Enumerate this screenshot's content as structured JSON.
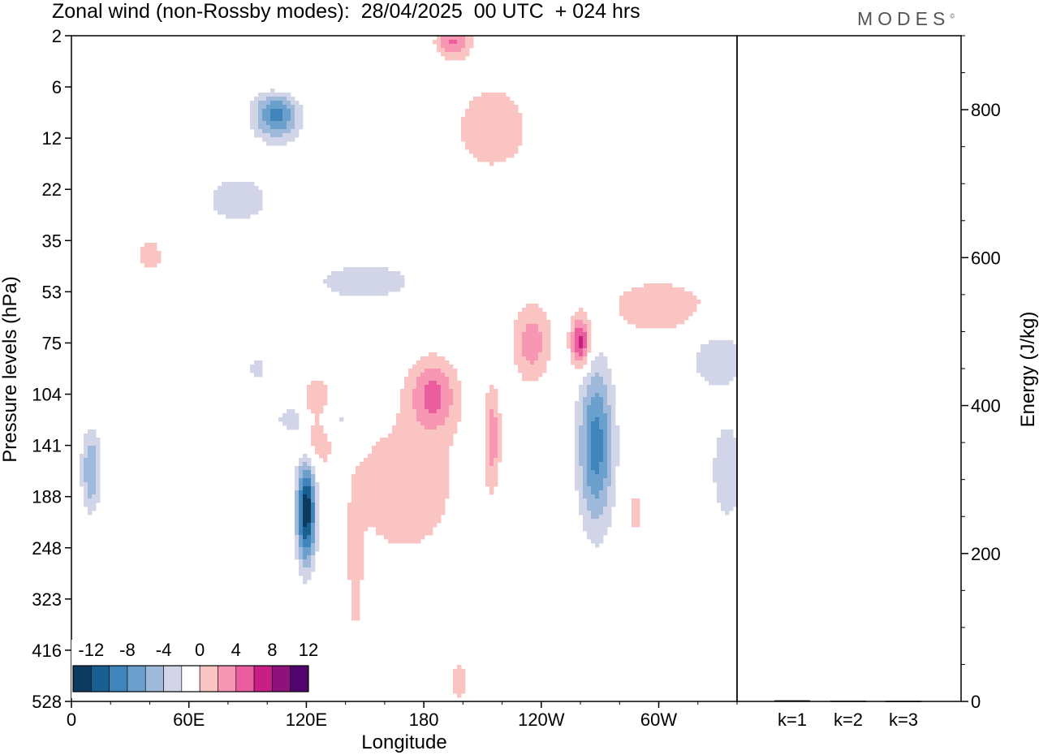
{
  "header": {
    "title": "Zonal wind (non-Rossby modes):  28/04/2025  00 UTC  + 024 hrs",
    "brand": "MODES",
    "brand_mark": "©"
  },
  "chart_data": [
    {
      "type": "heatmap",
      "title": "Zonal wind (non-Rossby modes):  28/04/2025  00 UTC  + 024 hrs",
      "xlabel": "Longitude",
      "ylabel": "Pressure levels (hPa)",
      "x_ticks": [
        "0",
        "60E",
        "120E",
        "180",
        "120W",
        "60W"
      ],
      "x_tick_deg": [
        0,
        60,
        120,
        180,
        240,
        300
      ],
      "xlim_deg": [
        0,
        340
      ],
      "y_ticks": [
        "2",
        "6",
        "12",
        "22",
        "35",
        "53",
        "75",
        "104",
        "141",
        "188",
        "248",
        "323",
        "416",
        "528"
      ],
      "colorbar": {
        "labels": [
          "-12",
          "-8",
          "-4",
          "0",
          "4",
          "8",
          "12"
        ],
        "levels": [
          -14,
          -12,
          -10,
          -8,
          -6,
          -4,
          -2,
          2,
          4,
          6,
          8,
          10,
          12,
          14
        ],
        "colors": [
          "#0d3a5e",
          "#1a5f92",
          "#3f85bc",
          "#6ca0cc",
          "#9fb9da",
          "#d2d5e8",
          "#ffffff",
          "#fac4c2",
          "#f797b4",
          "#ec5d9f",
          "#c81f87",
          "#8e1279",
          "#52046e"
        ]
      },
      "features": [
        {
          "lon": 105,
          "lev": 1.5,
          "u": -10,
          "w": 12,
          "h": 0.5
        },
        {
          "lon": 195,
          "lev": 0.1,
          "u": 6,
          "w": 9,
          "h": 0.35
        },
        {
          "lon": 108,
          "lev": 1.0,
          "u": 3,
          "w": 14,
          "h": 0.6
        },
        {
          "lon": 215,
          "lev": 1.8,
          "u": 3,
          "w": 25,
          "h": 1.1
        },
        {
          "lon": 85,
          "lev": 3.2,
          "u": -3,
          "w": 20,
          "h": 0.6
        },
        {
          "lon": 150,
          "lev": 4.8,
          "u": -4,
          "w": 25,
          "h": 0.35
        },
        {
          "lon": 125,
          "lev": 7.5,
          "u": -5,
          "w": 20,
          "h": 0.35
        },
        {
          "lon": 120,
          "lev": 9.3,
          "u": -14,
          "w": 5,
          "h": 1.0
        },
        {
          "lon": 125,
          "lev": 7.5,
          "u": 7,
          "w": 8,
          "h": 0.7
        },
        {
          "lon": 170,
          "lev": 8.8,
          "u": 3,
          "w": 35,
          "h": 1.8
        },
        {
          "lon": 185,
          "lev": 7.0,
          "u": 6,
          "w": 12,
          "h": 0.7
        },
        {
          "lon": 215,
          "lev": 7.8,
          "u": 5,
          "w": 4,
          "h": 1.0
        },
        {
          "lon": 235,
          "lev": 6.0,
          "u": 5,
          "w": 10,
          "h": 0.8
        },
        {
          "lon": 260,
          "lev": 6.0,
          "u": 9,
          "w": 5,
          "h": 0.5
        },
        {
          "lon": 268,
          "lev": 8.0,
          "u": -9,
          "w": 9,
          "h": 1.6
        },
        {
          "lon": 300,
          "lev": 5.3,
          "u": 3,
          "w": 35,
          "h": 0.7
        },
        {
          "lon": 330,
          "lev": 6.3,
          "u": -4,
          "w": 15,
          "h": 0.6
        },
        {
          "lon": 335,
          "lev": 8.5,
          "u": -4,
          "w": 8,
          "h": 1.0
        },
        {
          "lon": 10,
          "lev": 8.5,
          "u": -6,
          "w": 5,
          "h": 0.8
        },
        {
          "lon": 145,
          "lev": 10.7,
          "u": 2.5,
          "w": 4,
          "h": 1.5
        },
        {
          "lon": 145,
          "lev": 12.6,
          "u": -2.5,
          "w": 2.5,
          "h": 0.7
        },
        {
          "lon": 198,
          "lev": 12.6,
          "u": 3,
          "w": 5,
          "h": 0.5
        },
        {
          "lon": 288,
          "lev": 9.3,
          "u": 3,
          "w": 4,
          "h": 0.5
        },
        {
          "lon": 40,
          "lev": 4.3,
          "u": 3,
          "w": 8,
          "h": 0.4
        },
        {
          "lon": 345,
          "lev": 1.5,
          "u": -3,
          "w": 8,
          "h": 1.0
        },
        {
          "lon": 95,
          "lev": 6.5,
          "u": -3,
          "w": 5,
          "h": 0.3
        }
      ]
    },
    {
      "type": "bar",
      "ylabel": "Energy (J/kg)",
      "categories": [
        "k=1",
        "k=2",
        "k=3"
      ],
      "values": [
        1.5,
        1.0,
        0.8
      ],
      "ylim": [
        0,
        900
      ],
      "y_ticks": [
        0,
        200,
        400,
        600,
        800
      ]
    }
  ]
}
